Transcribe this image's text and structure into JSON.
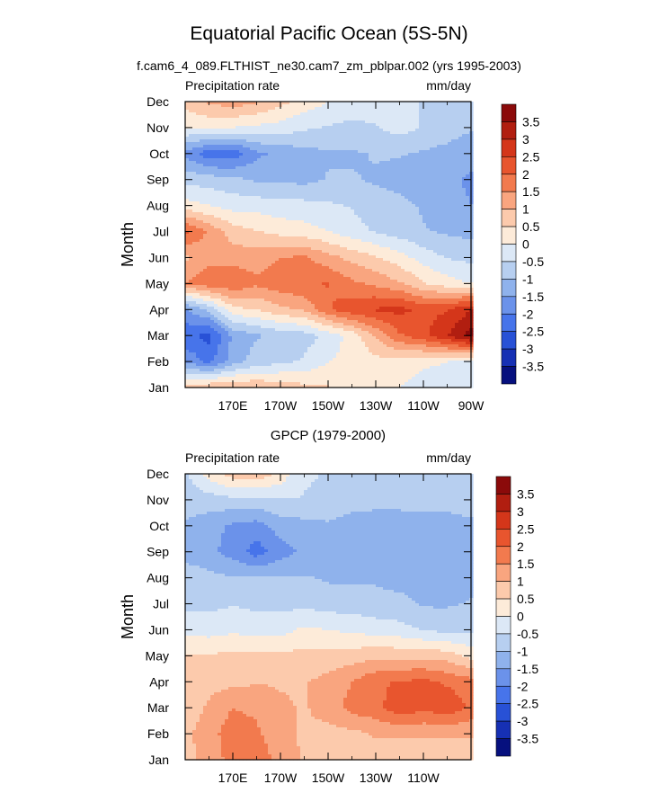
{
  "figure": {
    "title": "Equatorial Pacific Ocean (5S-5N)",
    "subtitle": "f.cam6_4_089.FLTHIST_ne30.cam7_zm_pblpar.002 (yrs 1995-2003)"
  },
  "colorbar": {
    "labels": [
      "3.5",
      "3",
      "2.5",
      "2",
      "1.5",
      "1",
      "0.5",
      "0",
      "-0.5",
      "-1",
      "-1.5",
      "-2",
      "-2.5",
      "-3",
      "-3.5"
    ],
    "colors_top_to_bottom": [
      "#8b0a0a",
      "#b11e10",
      "#d4361a",
      "#e8552e",
      "#f27a4e",
      "#f9a57f",
      "#fccaac",
      "#fdebd9",
      "#dce8f6",
      "#b7cff0",
      "#8fb2ec",
      "#6b92ea",
      "#4774ea",
      "#2851d6",
      "#1630b4",
      "#06107e"
    ]
  },
  "chart_data": [
    {
      "type": "heatmap",
      "panel_title": "",
      "left_label": "Precipitation rate",
      "right_label": "mm/day",
      "ylabel": "Month",
      "xlabel": "",
      "y_ticks": [
        "Jan",
        "Feb",
        "Mar",
        "Apr",
        "May",
        "Jun",
        "Jul",
        "Aug",
        "Sep",
        "Oct",
        "Nov",
        "Dec"
      ],
      "x_ticks": [
        "170E",
        "170W",
        "150W",
        "130W",
        "110W",
        "90W"
      ],
      "x_tick_lon": [
        170,
        190,
        210,
        230,
        250,
        270
      ],
      "xlim_lon": [
        150,
        270
      ],
      "zlim": [
        -3.75,
        3.75
      ],
      "contour_interval": 0.5,
      "units": "mm/day",
      "x_grid_lon": [
        150,
        160,
        170,
        180,
        190,
        200,
        210,
        220,
        230,
        240,
        250,
        260,
        270
      ],
      "values": [
        [
          0.8,
          0.9,
          1.0,
          0.9,
          0.8,
          0.6,
          0.5,
          0.3,
          0.2,
          0.0,
          -0.2,
          -0.3,
          -0.4
        ],
        [
          -1.5,
          -2.0,
          -1.2,
          -0.7,
          -0.6,
          -0.4,
          0.0,
          0.1,
          0.3,
          0.3,
          0.1,
          0.0,
          -0.2
        ],
        [
          -2.2,
          -2.5,
          -1.3,
          -1.0,
          -0.8,
          -0.7,
          -0.3,
          0.2,
          1.0,
          1.8,
          2.2,
          2.8,
          3.5
        ],
        [
          -1.5,
          -0.8,
          0.3,
          0.5,
          0.8,
          1.0,
          1.8,
          2.2,
          2.4,
          2.5,
          2.2,
          2.3,
          2.8
        ],
        [
          1.4,
          1.7,
          1.8,
          1.5,
          1.7,
          1.8,
          1.9,
          1.5,
          1.3,
          1.0,
          0.5,
          0.2,
          0.0
        ],
        [
          0.8,
          1.3,
          1.2,
          1.2,
          1.4,
          1.5,
          1.1,
          0.8,
          0.5,
          0.2,
          -0.2,
          -0.5,
          -0.6
        ],
        [
          2.0,
          1.3,
          0.7,
          0.5,
          0.3,
          0.2,
          0.0,
          -0.3,
          -0.5,
          -0.7,
          -0.9,
          -1.0,
          -1.1
        ],
        [
          0.2,
          0.0,
          -0.2,
          -0.2,
          -0.3,
          -0.3,
          -0.4,
          -0.5,
          -0.7,
          -0.8,
          -1.0,
          -1.2,
          -1.4
        ],
        [
          -0.6,
          -0.7,
          -0.8,
          -1.0,
          -1.0,
          -1.1,
          -0.9,
          -0.9,
          -1.0,
          -1.1,
          -1.2,
          -1.3,
          -1.5
        ],
        [
          -1.5,
          -2.2,
          -2.2,
          -1.5,
          -1.3,
          -1.1,
          -1.0,
          -1.0,
          -0.9,
          -0.9,
          -1.0,
          -1.1,
          -1.2
        ],
        [
          0.0,
          0.1,
          0.0,
          -0.1,
          -0.2,
          -0.4,
          -0.5,
          -0.6,
          -0.5,
          -0.3,
          -0.5,
          -0.7,
          -0.9
        ],
        [
          0.7,
          1.0,
          1.2,
          1.0,
          0.6,
          0.3,
          0.0,
          -0.2,
          -0.2,
          -0.3,
          -0.5,
          -0.7,
          -0.9
        ]
      ]
    },
    {
      "type": "heatmap",
      "panel_title": "GPCP (1979-2000)",
      "left_label": "Precipitation rate",
      "right_label": "mm/day",
      "ylabel": "Month",
      "xlabel": "",
      "y_ticks": [
        "Jan",
        "Feb",
        "Mar",
        "Apr",
        "May",
        "Jun",
        "Jul",
        "Aug",
        "Sep",
        "Oct",
        "Nov",
        "Dec"
      ],
      "x_ticks": [
        "170E",
        "170W",
        "150W",
        "130W",
        "110W"
      ],
      "x_tick_lon": [
        170,
        190,
        210,
        230,
        250
      ],
      "xlim_lon": [
        150,
        270
      ],
      "zlim": [
        -3.75,
        3.75
      ],
      "contour_interval": 0.5,
      "units": "mm/day",
      "x_grid_lon": [
        150,
        160,
        170,
        180,
        190,
        200,
        210,
        220,
        230,
        240,
        250,
        260,
        270
      ],
      "values": [
        [
          0.8,
          1.1,
          1.6,
          1.9,
          1.1,
          0.9,
          0.7,
          0.6,
          0.6,
          0.5,
          0.5,
          0.6,
          0.7
        ],
        [
          0.8,
          1.2,
          1.7,
          1.5,
          1.0,
          0.9,
          0.8,
          0.8,
          1.0,
          1.0,
          1.0,
          1.0,
          1.0
        ],
        [
          0.7,
          1.0,
          1.4,
          1.3,
          1.0,
          0.9,
          1.1,
          1.6,
          1.7,
          2.2,
          2.0,
          2.2,
          1.8
        ],
        [
          0.6,
          0.8,
          0.8,
          0.9,
          0.9,
          0.9,
          1.1,
          1.4,
          1.8,
          1.9,
          2.0,
          1.8,
          1.6
        ],
        [
          0.5,
          0.5,
          0.6,
          0.6,
          0.6,
          0.6,
          0.6,
          0.7,
          0.8,
          0.8,
          0.8,
          0.7,
          0.3
        ],
        [
          -0.1,
          -0.2,
          -0.1,
          -0.2,
          -0.2,
          0.1,
          0.0,
          -0.1,
          -0.2,
          -0.3,
          -0.5,
          -0.6,
          -0.6
        ],
        [
          -0.6,
          -0.6,
          -0.5,
          -0.6,
          -0.6,
          -0.6,
          -0.7,
          -0.7,
          -0.8,
          -0.8,
          -1.0,
          -1.0,
          -0.9
        ],
        [
          -0.6,
          -0.8,
          -0.9,
          -0.9,
          -0.9,
          -0.9,
          -1.0,
          -1.0,
          -1.0,
          -1.1,
          -1.1,
          -1.1,
          -1.1
        ],
        [
          -1.2,
          -1.3,
          -1.6,
          -2.1,
          -1.6,
          -1.3,
          -1.1,
          -1.2,
          -1.3,
          -1.3,
          -1.2,
          -1.1,
          -1.1
        ],
        [
          -1.0,
          -1.2,
          -1.5,
          -1.6,
          -1.2,
          -1.1,
          -1.0,
          -1.2,
          -1.3,
          -1.3,
          -1.3,
          -1.2,
          -1.1
        ],
        [
          -0.7,
          -0.7,
          -0.6,
          -0.6,
          -0.5,
          -0.5,
          -0.6,
          -0.7,
          -0.7,
          -0.7,
          -0.6,
          -0.7,
          -0.6
        ],
        [
          -0.6,
          0.2,
          0.7,
          0.8,
          0.3,
          -0.4,
          -0.5,
          -0.6,
          -0.6,
          -0.5,
          -0.5,
          -0.5,
          -0.5
        ]
      ]
    }
  ]
}
